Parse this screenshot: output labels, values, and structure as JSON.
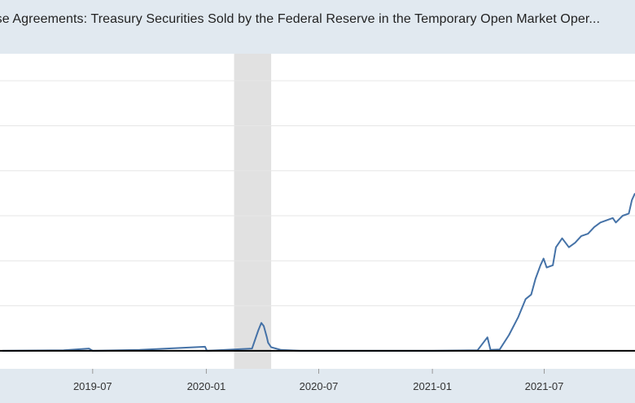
{
  "chart_data": {
    "type": "line",
    "title": "...ase Agreements: Treasury Securities Sold by the Federal Reserve in the Temporary Open Market Oper...",
    "xlabel": "",
    "ylabel": "",
    "x_tick_labels": [
      "2019-07",
      "2020-01",
      "2020-07",
      "2021-01",
      "2021-07"
    ],
    "x_range": [
      "2019-02-01",
      "2021-11-25"
    ],
    "y_range_relative": [
      -0.4,
      6.6
    ],
    "grid": "horizontal",
    "recession_shading": {
      "start": "2020-02-15",
      "end": "2020-04-15"
    },
    "series": [
      {
        "color": "#4572a7",
        "points": [
          [
            "2019-02-05",
            0.0
          ],
          [
            "2019-05-15",
            0.01
          ],
          [
            "2019-06-25",
            0.05
          ],
          [
            "2019-07-01",
            0.0
          ],
          [
            "2019-09-15",
            0.02
          ],
          [
            "2019-12-30",
            0.09
          ],
          [
            "2020-01-02",
            0.0
          ],
          [
            "2020-03-15",
            0.05
          ],
          [
            "2020-03-25",
            0.45
          ],
          [
            "2020-03-30",
            0.62
          ],
          [
            "2020-04-03",
            0.55
          ],
          [
            "2020-04-08",
            0.3
          ],
          [
            "2020-04-10",
            0.18
          ],
          [
            "2020-04-15",
            0.08
          ],
          [
            "2020-05-01",
            0.02
          ],
          [
            "2020-06-01",
            0.0
          ],
          [
            "2021-01-01",
            0.0
          ],
          [
            "2021-03-15",
            0.01
          ],
          [
            "2021-03-31",
            0.3
          ],
          [
            "2021-04-05",
            0.02
          ],
          [
            "2021-04-20",
            0.03
          ],
          [
            "2021-05-05",
            0.35
          ],
          [
            "2021-05-20",
            0.75
          ],
          [
            "2021-06-01",
            1.15
          ],
          [
            "2021-06-10",
            1.25
          ],
          [
            "2021-06-17",
            1.6
          ],
          [
            "2021-06-25",
            1.9
          ],
          [
            "2021-06-30",
            2.05
          ],
          [
            "2021-07-05",
            1.85
          ],
          [
            "2021-07-15",
            1.9
          ],
          [
            "2021-07-20",
            2.3
          ],
          [
            "2021-07-30",
            2.5
          ],
          [
            "2021-08-10",
            2.3
          ],
          [
            "2021-08-20",
            2.4
          ],
          [
            "2021-08-30",
            2.55
          ],
          [
            "2021-09-10",
            2.6
          ],
          [
            "2021-09-20",
            2.75
          ],
          [
            "2021-09-30",
            2.85
          ],
          [
            "2021-10-10",
            2.9
          ],
          [
            "2021-10-20",
            2.95
          ],
          [
            "2021-10-25",
            2.85
          ],
          [
            "2021-11-05",
            3.0
          ],
          [
            "2021-11-15",
            3.05
          ],
          [
            "2021-11-20",
            3.35
          ],
          [
            "2021-11-25",
            3.5
          ]
        ]
      }
    ]
  }
}
